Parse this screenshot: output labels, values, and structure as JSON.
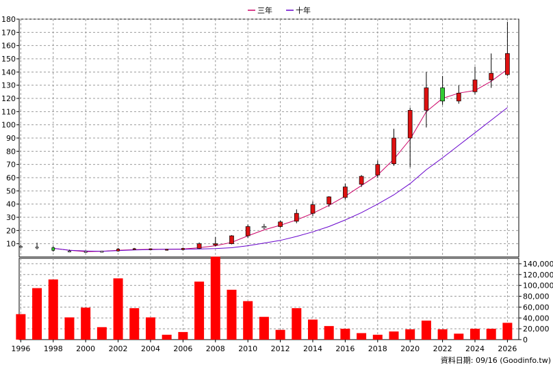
{
  "legend": [
    {
      "name": "三年",
      "color": "#cc0066"
    },
    {
      "name": "十年",
      "color": "#6600cc"
    }
  ],
  "footer_note": "資料日期: 09/16  (Goodinfo.tw)",
  "chart_data": {
    "type": "candlestick+bar",
    "x_ticks": [
      "1996",
      "1998",
      "2000",
      "2002",
      "2004",
      "2006",
      "2008",
      "2010",
      "2012",
      "2014",
      "2016",
      "2018",
      "2020",
      "2022",
      "2024",
      "2026"
    ],
    "price_axis": {
      "ylim": [
        0,
        180
      ],
      "ticks": [
        10,
        20,
        30,
        40,
        50,
        60,
        70,
        80,
        90,
        100,
        110,
        120,
        130,
        140,
        150,
        160,
        170,
        180
      ]
    },
    "volume_axis": {
      "ylim": [
        0,
        150000
      ],
      "ticks": [
        "0",
        "20,000",
        "40,000",
        "60,000",
        "80,000",
        "100,000",
        "120,000",
        "140,000"
      ]
    },
    "grid": true,
    "candles": [
      {
        "year": 1996,
        "open": 8.0,
        "high": 9.0,
        "low": 6.5,
        "close": 7.8,
        "up": false
      },
      {
        "year": 1997,
        "open": 7.5,
        "high": 10.8,
        "low": 5.8,
        "close": 7.0,
        "up": false
      },
      {
        "year": 1998,
        "open": 5.0,
        "high": 8.0,
        "low": 4.0,
        "close": 7.0,
        "up": false
      },
      {
        "year": 1999,
        "open": 4.5,
        "high": 5.5,
        "low": 3.5,
        "close": 4.0,
        "up": false
      },
      {
        "year": 2000,
        "open": 4.2,
        "high": 4.5,
        "low": 3.8,
        "close": 4.0,
        "up": false
      },
      {
        "year": 2001,
        "open": 4.0,
        "high": 4.5,
        "low": 3.5,
        "close": 4.3,
        "up": false
      },
      {
        "year": 2002,
        "open": 4.5,
        "high": 6.8,
        "low": 4.0,
        "close": 6.0,
        "up": true
      },
      {
        "year": 2003,
        "open": 6.0,
        "high": 6.8,
        "low": 5.5,
        "close": 6.3,
        "up": true
      },
      {
        "year": 2004,
        "open": 6.0,
        "high": 6.5,
        "low": 5.5,
        "close": 6.2,
        "up": true
      },
      {
        "year": 2005,
        "open": 5.5,
        "high": 6.0,
        "low": 5.0,
        "close": 5.8,
        "up": true
      },
      {
        "year": 2006,
        "open": 5.5,
        "high": 7.0,
        "low": 5.0,
        "close": 6.5,
        "up": true
      },
      {
        "year": 2007,
        "open": 6.5,
        "high": 11.0,
        "low": 6.0,
        "close": 10.0,
        "up": true
      },
      {
        "year": 2008,
        "open": 9.0,
        "high": 15.0,
        "low": 8.0,
        "close": 10.0,
        "up": true
      },
      {
        "year": 2009,
        "open": 10.0,
        "high": 16.5,
        "low": 9.5,
        "close": 16.0,
        "up": true
      },
      {
        "year": 2010,
        "open": 16.0,
        "high": 24.5,
        "low": 14.5,
        "close": 23.0,
        "up": true
      },
      {
        "year": 2011,
        "open": 22.5,
        "high": 25.0,
        "low": 21.0,
        "close": 23.0,
        "up": false
      },
      {
        "year": 2012,
        "open": 23.0,
        "high": 27.5,
        "low": 22.0,
        "close": 26.5,
        "up": true
      },
      {
        "year": 2013,
        "open": 27.0,
        "high": 36.0,
        "low": 25.5,
        "close": 33.0,
        "up": true
      },
      {
        "year": 2014,
        "open": 33.0,
        "high": 42.0,
        "low": 31.0,
        "close": 39.5,
        "up": true
      },
      {
        "year": 2015,
        "open": 40.0,
        "high": 46.0,
        "low": 38.0,
        "close": 45.5,
        "up": true
      },
      {
        "year": 2016,
        "open": 45.0,
        "high": 55.5,
        "low": 43.5,
        "close": 53.0,
        "up": true
      },
      {
        "year": 2017,
        "open": 55.0,
        "high": 62.0,
        "low": 53.0,
        "close": 61.0,
        "up": true
      },
      {
        "year": 2018,
        "open": 62.0,
        "high": 73.0,
        "low": 60.0,
        "close": 70.0,
        "up": true
      },
      {
        "year": 2019,
        "open": 70.5,
        "high": 97.0,
        "low": 69.0,
        "close": 90.0,
        "up": true
      },
      {
        "year": 2020,
        "open": 90.0,
        "high": 113.0,
        "low": 68.0,
        "close": 111.0,
        "up": true
      },
      {
        "year": 2021,
        "open": 111.0,
        "high": 140.0,
        "low": 98.0,
        "close": 128.0,
        "up": true
      },
      {
        "year": 2022,
        "open": 128.0,
        "high": 137.0,
        "low": 115.0,
        "close": 118.0,
        "up": false
      },
      {
        "year": 2023,
        "open": 118.0,
        "high": 130.0,
        "low": 116.0,
        "close": 124.0,
        "up": true
      },
      {
        "year": 2024,
        "open": 125.0,
        "high": 144.0,
        "low": 123.0,
        "close": 134.0,
        "up": true
      },
      {
        "year": 2025,
        "open": 134.0,
        "high": 154.0,
        "low": 128.0,
        "close": 139.0,
        "up": true
      },
      {
        "year": 2026,
        "open": 138.0,
        "high": 178.0,
        "low": 137.0,
        "close": 154.0,
        "up": true
      }
    ],
    "series": [
      {
        "name": "三年",
        "color": "#cc0066",
        "points": [
          [
            1998,
            6.5
          ],
          [
            1999,
            5.0
          ],
          [
            2000,
            4.0
          ],
          [
            2001,
            4.3
          ],
          [
            2002,
            5.0
          ],
          [
            2003,
            5.5
          ],
          [
            2004,
            5.8
          ],
          [
            2005,
            5.8
          ],
          [
            2006,
            6.0
          ],
          [
            2007,
            7.0
          ],
          [
            2008,
            8.5
          ],
          [
            2009,
            11.0
          ],
          [
            2010,
            16.0
          ],
          [
            2011,
            20.5
          ],
          [
            2012,
            24.0
          ],
          [
            2013,
            28.0
          ],
          [
            2014,
            33.0
          ],
          [
            2015,
            39.0
          ],
          [
            2016,
            46.0
          ],
          [
            2017,
            54.0
          ],
          [
            2018,
            62.0
          ],
          [
            2019,
            74.0
          ],
          [
            2020,
            89.0
          ],
          [
            2021,
            110.0
          ],
          [
            2022,
            120.0
          ],
          [
            2023,
            124.0
          ],
          [
            2024,
            126.0
          ],
          [
            2025,
            133.0
          ],
          [
            2026,
            142.0
          ]
        ]
      },
      {
        "name": "十年",
        "color": "#6600cc",
        "points": [
          [
            1998,
            6.5
          ],
          [
            1999,
            5.0
          ],
          [
            2000,
            4.5
          ],
          [
            2001,
            4.3
          ],
          [
            2002,
            4.8
          ],
          [
            2003,
            5.3
          ],
          [
            2004,
            5.6
          ],
          [
            2005,
            5.8
          ],
          [
            2006,
            5.8
          ],
          [
            2007,
            6.0
          ],
          [
            2008,
            6.3
          ],
          [
            2009,
            7.0
          ],
          [
            2010,
            8.5
          ],
          [
            2011,
            10.5
          ],
          [
            2012,
            12.5
          ],
          [
            2013,
            15.5
          ],
          [
            2014,
            19.0
          ],
          [
            2015,
            23.0
          ],
          [
            2016,
            28.0
          ],
          [
            2017,
            33.5
          ],
          [
            2018,
            40.0
          ],
          [
            2019,
            47.0
          ],
          [
            2020,
            55.5
          ],
          [
            2021,
            66.0
          ],
          [
            2022,
            75.0
          ],
          [
            2023,
            84.5
          ],
          [
            2024,
            94.0
          ],
          [
            2025,
            103.5
          ],
          [
            2026,
            113.0
          ]
        ]
      }
    ],
    "volume": [
      {
        "year": 1996,
        "value": 47000
      },
      {
        "year": 1997,
        "value": 95000
      },
      {
        "year": 1998,
        "value": 111000
      },
      {
        "year": 1999,
        "value": 41000
      },
      {
        "year": 2000,
        "value": 59000
      },
      {
        "year": 2001,
        "value": 23000
      },
      {
        "year": 2002,
        "value": 113000
      },
      {
        "year": 2003,
        "value": 58000
      },
      {
        "year": 2004,
        "value": 41000
      },
      {
        "year": 2005,
        "value": 9000
      },
      {
        "year": 2006,
        "value": 14000
      },
      {
        "year": 2007,
        "value": 107000
      },
      {
        "year": 2008,
        "value": 153000
      },
      {
        "year": 2009,
        "value": 92000
      },
      {
        "year": 2010,
        "value": 71000
      },
      {
        "year": 2011,
        "value": 42000
      },
      {
        "year": 2012,
        "value": 18000
      },
      {
        "year": 2013,
        "value": 58000
      },
      {
        "year": 2014,
        "value": 37000
      },
      {
        "year": 2015,
        "value": 25000
      },
      {
        "year": 2016,
        "value": 20000
      },
      {
        "year": 2017,
        "value": 12000
      },
      {
        "year": 2018,
        "value": 9000
      },
      {
        "year": 2019,
        "value": 15000
      },
      {
        "year": 2020,
        "value": 19000
      },
      {
        "year": 2021,
        "value": 35000
      },
      {
        "year": 2022,
        "value": 19000
      },
      {
        "year": 2023,
        "value": 11000
      },
      {
        "year": 2024,
        "value": 20000
      },
      {
        "year": 2025,
        "value": 20000
      },
      {
        "year": 2026,
        "value": 31000
      }
    ]
  }
}
